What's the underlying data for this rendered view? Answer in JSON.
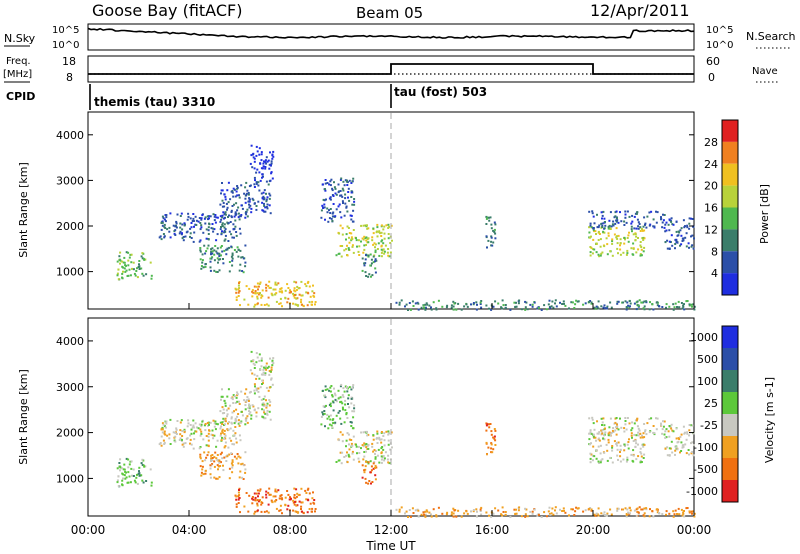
{
  "header": {
    "title": "Goose Bay (fitACF)",
    "beam": "Beam 05",
    "date": "12/Apr/2011"
  },
  "noise_panel": {
    "left_label": "N.Sky",
    "left_ticks": [
      "10^5",
      "10^0"
    ],
    "right_ticks": [
      "10^5",
      "10^0"
    ],
    "right_label": "N.Search"
  },
  "freq_panel": {
    "left_label_line1": "Freq.",
    "left_label_line2": "[MHz]",
    "left_ticks": [
      "18",
      "8"
    ],
    "right_ticks": [
      "60",
      "0"
    ],
    "right_label": "Nave"
  },
  "cpid_panel": {
    "label": "CPID",
    "programs": [
      {
        "name": "themis (tau) 3310",
        "start_hour": 0
      },
      {
        "name": "tau (fost) 503",
        "start_hour": 12
      }
    ]
  },
  "chart_data": [
    {
      "type": "heatmap",
      "quantity": "Power",
      "ylabel": "Slant Range [km]",
      "xlabel": "Time UT",
      "x_range_hours": [
        0,
        24
      ],
      "ylim": [
        180,
        4500
      ],
      "y_ticks": [
        1000,
        2000,
        3000,
        4000
      ],
      "x_tick_labels": [
        "00:00",
        "04:00",
        "08:00",
        "12:00",
        "16:00",
        "20:00",
        "00:00"
      ],
      "colorbar_label": "Power [dB]",
      "colorbar_ticks": [
        "4",
        "8",
        "12",
        "16",
        "20",
        "24",
        "28"
      ],
      "colorbar_colors": [
        "#1f2ee0",
        "#2b4fa8",
        "#3a7d6a",
        "#4fb84f",
        "#b8d23a",
        "#f0c020",
        "#f08020",
        "#e02020"
      ],
      "echo_regions": [
        {
          "t0": 1.1,
          "t1": 2.5,
          "r0": 850,
          "r1": 1450,
          "level": 3
        },
        {
          "t0": 2.8,
          "t1": 6.0,
          "r0": 1650,
          "r1": 2300,
          "level": 1
        },
        {
          "t0": 5.2,
          "t1": 7.2,
          "r0": 2200,
          "r1": 3000,
          "level": 1
        },
        {
          "t0": 6.4,
          "t1": 7.3,
          "r0": 3000,
          "r1": 3800,
          "level": 0
        },
        {
          "t0": 4.4,
          "t1": 6.2,
          "r0": 1000,
          "r1": 1600,
          "level": 2
        },
        {
          "t0": 5.8,
          "t1": 9.0,
          "r0": 250,
          "r1": 800,
          "level": 5
        },
        {
          "t0": 9.2,
          "t1": 10.5,
          "r0": 2100,
          "r1": 3100,
          "level": 1
        },
        {
          "t0": 9.8,
          "t1": 12.0,
          "r0": 1350,
          "r1": 2050,
          "level": 4
        },
        {
          "t0": 10.8,
          "t1": 11.4,
          "r0": 900,
          "r1": 1400,
          "level": 2
        },
        {
          "t0": 15.7,
          "t1": 16.1,
          "r0": 1500,
          "r1": 2300,
          "level": 2
        },
        {
          "t0": 19.8,
          "t1": 22.0,
          "r0": 1350,
          "r1": 2000,
          "level": 4
        },
        {
          "t0": 19.8,
          "t1": 22.8,
          "r0": 1950,
          "r1": 2350,
          "level": 1
        },
        {
          "t0": 22.8,
          "t1": 24.0,
          "r0": 1500,
          "r1": 2200,
          "level": 1
        },
        {
          "t0": 12.0,
          "t1": 24.0,
          "r0": 180,
          "r1": 400,
          "level": 2
        }
      ]
    },
    {
      "type": "heatmap",
      "quantity": "Velocity",
      "ylabel": "Slant Range [km]",
      "xlabel": "Time UT",
      "x_range_hours": [
        0,
        24
      ],
      "ylim": [
        180,
        4500
      ],
      "y_ticks": [
        1000,
        2000,
        3000,
        4000
      ],
      "x_tick_labels": [
        "00:00",
        "04:00",
        "08:00",
        "12:00",
        "16:00",
        "20:00",
        "00:00"
      ],
      "colorbar_label": "Velocity [m s-1]",
      "colorbar_ticks": [
        "1000",
        "500",
        "100",
        "25",
        "-25",
        "-100",
        "-500",
        "-1000"
      ],
      "colorbar_colors": [
        "#1f2ee0",
        "#2b4fa8",
        "#3a7d6a",
        "#5cc83a",
        "#c8c8c0",
        "#f0a020",
        "#f07010",
        "#e02020"
      ],
      "echo_regions": [
        {
          "t0": 1.1,
          "t1": 2.5,
          "r0": 850,
          "r1": 1450,
          "level": 3
        },
        {
          "t0": 2.8,
          "t1": 6.0,
          "r0": 1650,
          "r1": 2300,
          "level": 4
        },
        {
          "t0": 5.2,
          "t1": 7.2,
          "r0": 2200,
          "r1": 3000,
          "level": 4
        },
        {
          "t0": 6.4,
          "t1": 7.3,
          "r0": 3000,
          "r1": 3800,
          "level": 4
        },
        {
          "t0": 4.4,
          "t1": 6.2,
          "r0": 1000,
          "r1": 1600,
          "level": 5
        },
        {
          "t0": 5.8,
          "t1": 9.0,
          "r0": 250,
          "r1": 800,
          "level": 6
        },
        {
          "t0": 9.2,
          "t1": 10.5,
          "r0": 2100,
          "r1": 3100,
          "level": 3
        },
        {
          "t0": 9.8,
          "t1": 12.0,
          "r0": 1350,
          "r1": 2050,
          "level": 4
        },
        {
          "t0": 10.8,
          "t1": 11.4,
          "r0": 900,
          "r1": 1400,
          "level": 6
        },
        {
          "t0": 15.7,
          "t1": 16.1,
          "r0": 1500,
          "r1": 2300,
          "level": 6
        },
        {
          "t0": 19.8,
          "t1": 22.0,
          "r0": 1350,
          "r1": 2000,
          "level": 4
        },
        {
          "t0": 19.8,
          "t1": 22.8,
          "r0": 1950,
          "r1": 2350,
          "level": 4
        },
        {
          "t0": 22.8,
          "t1": 24.0,
          "r0": 1500,
          "r1": 2200,
          "level": 4
        },
        {
          "t0": 12.0,
          "t1": 24.0,
          "r0": 180,
          "r1": 400,
          "level": 5
        }
      ]
    }
  ],
  "x_axis_label": "Time UT",
  "x_tick_labels": [
    "00:00",
    "04:00",
    "08:00",
    "12:00",
    "16:00",
    "20:00",
    "00:00"
  ]
}
